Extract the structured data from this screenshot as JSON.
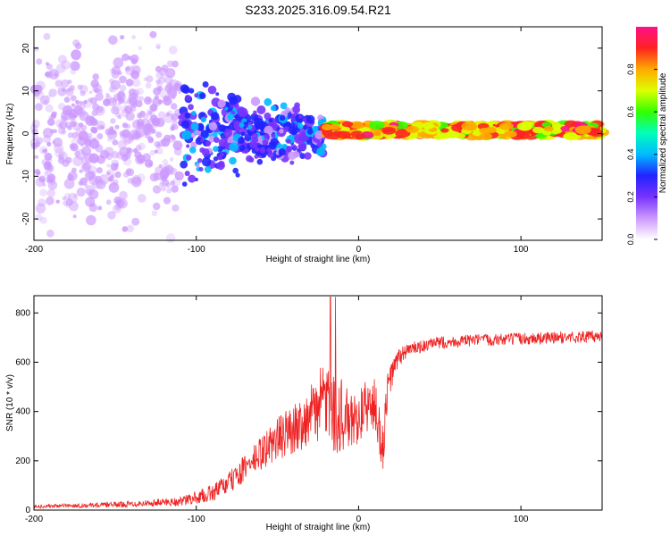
{
  "figure_title": "S233.2025.316.09.54.R21",
  "colors": {
    "snr_line": "#ee2222",
    "axis": "#000000",
    "background": "#ffffff",
    "colormap": [
      "#ffffff",
      "#cc99ff",
      "#7733ff",
      "#2222ff",
      "#00bbff",
      "#00ffbb",
      "#33ff00",
      "#ddff00",
      "#ffaa00",
      "#ff2222",
      "#ff1188"
    ]
  },
  "chart_data": [
    {
      "type": "heatmap",
      "title": "S233.2025.316.09.54.R21",
      "xlabel": "Height of straight line (km)",
      "ylabel": "Frequency (Hz)",
      "xlim": [
        -200,
        150
      ],
      "ylim": [
        -25,
        25
      ],
      "xticks": [
        -200,
        -100,
        0,
        100
      ],
      "yticks": [
        -20,
        -10,
        0,
        10,
        20
      ],
      "colorbar": {
        "label": "Normalized spectral amplitude",
        "range": [
          0,
          1
        ],
        "ticks": [
          0.0,
          0.2,
          0.4,
          0.6,
          0.8
        ]
      },
      "description_regions": [
        {
          "x_range": [
            -200,
            -110
          ],
          "freq_spread": 25,
          "amplitude": 0.1
        },
        {
          "x_range": [
            -110,
            -20
          ],
          "freq_spread": 6,
          "amplitude": 0.3
        },
        {
          "x_range": [
            -20,
            150
          ],
          "freq_spread": 1.5,
          "amplitude": 0.75
        }
      ]
    },
    {
      "type": "line",
      "xlabel": "Height of straight line (km)",
      "ylabel": "SNR (10 * v/v)",
      "xlim": [
        -200,
        150
      ],
      "ylim": [
        0,
        870
      ],
      "xticks": [
        -200,
        -100,
        0,
        100
      ],
      "yticks": [
        0,
        200,
        400,
        600,
        800
      ],
      "series": [
        {
          "name": "SNR",
          "x": [
            -200,
            -180,
            -160,
            -140,
            -125,
            -110,
            -100,
            -90,
            -80,
            -70,
            -60,
            -50,
            -40,
            -30,
            -25,
            -20,
            -15,
            -10,
            -5,
            0,
            5,
            10,
            15,
            18,
            22,
            25,
            30,
            40,
            50,
            75,
            100,
            125,
            150
          ],
          "y": [
            15,
            18,
            20,
            25,
            30,
            35,
            50,
            70,
            110,
            170,
            230,
            290,
            330,
            380,
            420,
            450,
            420,
            380,
            350,
            380,
            420,
            420,
            250,
            500,
            580,
            620,
            650,
            665,
            680,
            690,
            695,
            700,
            705
          ],
          "noise": [
            8,
            8,
            10,
            12,
            15,
            20,
            25,
            35,
            45,
            55,
            70,
            90,
            100,
            120,
            140,
            170,
            200,
            150,
            120,
            110,
            110,
            120,
            100,
            70,
            50,
            40,
            30,
            25,
            25,
            25,
            25,
            25,
            25
          ]
        }
      ]
    }
  ]
}
